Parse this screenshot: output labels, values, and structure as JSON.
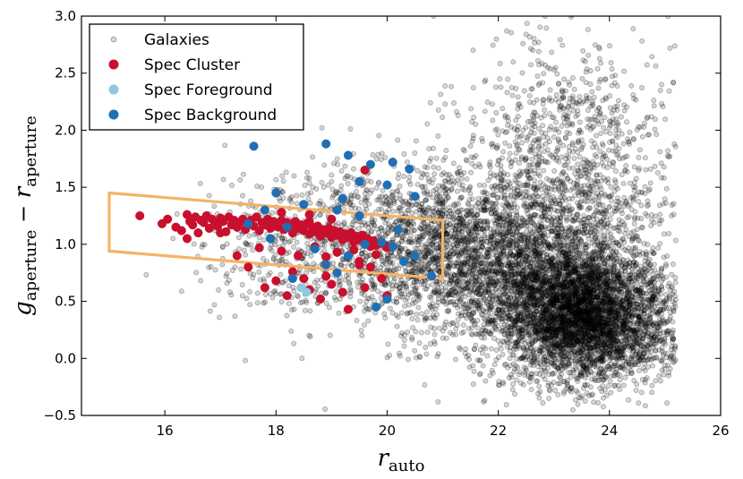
{
  "chart_data": {
    "type": "scatter",
    "title": "",
    "xlabel": {
      "base": "r",
      "sub": "auto"
    },
    "ylabel": {
      "g": "g",
      "g_sub": "aperture",
      "minus": " − ",
      "r": "r",
      "r_sub": "aperture"
    },
    "xlim": [
      14.5,
      26
    ],
    "ylim": [
      -0.5,
      3.0
    ],
    "xticks": [
      16,
      18,
      20,
      22,
      24,
      26
    ],
    "yticks": [
      -0.5,
      0.0,
      0.5,
      1.0,
      1.5,
      2.0,
      2.5,
      3.0
    ],
    "xtick_labels": [
      "16",
      "18",
      "20",
      "22",
      "24",
      "26"
    ],
    "ytick_labels": [
      "−0.5",
      "0.0",
      "0.5",
      "1.0",
      "1.5",
      "2.0",
      "2.5",
      "3.0"
    ],
    "grid": false,
    "legend_position": "top-left",
    "legend": [
      {
        "label": "Galaxies",
        "color": "#bfbfbf",
        "marker": "open-circle"
      },
      {
        "label": "Spec Cluster",
        "color": "#c8102e",
        "marker": "circle"
      },
      {
        "label": "Spec Foreground",
        "color": "#8ec9e0",
        "marker": "circle"
      },
      {
        "label": "Spec Background",
        "color": "#1f6fb5",
        "marker": "circle"
      }
    ],
    "selection_box": {
      "color": "#f5b266",
      "vertices": [
        [
          15.0,
          1.45
        ],
        [
          21.0,
          1.21
        ],
        [
          21.0,
          0.7
        ],
        [
          15.0,
          0.94
        ]
      ]
    },
    "series": [
      {
        "name": "Galaxies",
        "color": "#000000",
        "style": "translucent-open",
        "description": "approx. 9000 galaxies; dense cloud centred near r=23-24, g-r~0.3, spreading to r~15.5-25.2 and g-r -0.5 to 3.0",
        "approx_count": 9000,
        "clusters": [
          {
            "mean_x": 23.6,
            "mean_y": 0.35,
            "sd_x": 0.75,
            "sd_y": 0.28,
            "n": 3600
          },
          {
            "mean_x": 22.6,
            "mean_y": 0.75,
            "sd_x": 1.0,
            "sd_y": 0.38,
            "n": 2200
          },
          {
            "mean_x": 23.2,
            "mean_y": 1.6,
            "sd_x": 0.9,
            "sd_y": 0.6,
            "n": 1200
          },
          {
            "mean_x": 20.8,
            "mean_y": 1.0,
            "sd_x": 0.8,
            "sd_y": 0.35,
            "n": 1200
          },
          {
            "mean_x": 18.8,
            "mean_y": 1.0,
            "sd_x": 1.1,
            "sd_y": 0.35,
            "n": 700
          }
        ]
      },
      {
        "name": "Spec Cluster",
        "color": "#c8102e",
        "points": [
          [
            15.55,
            1.25
          ],
          [
            15.95,
            1.18
          ],
          [
            16.05,
            1.22
          ],
          [
            16.2,
            1.15
          ],
          [
            16.3,
            1.12
          ],
          [
            16.4,
            1.26
          ],
          [
            16.45,
            1.2
          ],
          [
            16.5,
            1.17
          ],
          [
            16.55,
            1.24
          ],
          [
            16.6,
            1.1
          ],
          [
            16.65,
            1.21
          ],
          [
            16.7,
            1.19
          ],
          [
            16.75,
            1.25
          ],
          [
            16.8,
            1.14
          ],
          [
            16.85,
            1.22
          ],
          [
            16.9,
            1.18
          ],
          [
            16.95,
            1.16
          ],
          [
            17.0,
            1.23
          ],
          [
            17.05,
            1.2
          ],
          [
            17.1,
            1.11
          ],
          [
            17.15,
            1.24
          ],
          [
            17.2,
            1.17
          ],
          [
            17.25,
            1.21
          ],
          [
            17.3,
            1.15
          ],
          [
            17.35,
            1.19
          ],
          [
            17.4,
            1.22
          ],
          [
            17.45,
            1.13
          ],
          [
            17.5,
            1.18
          ],
          [
            17.55,
            1.21
          ],
          [
            17.6,
            1.16
          ],
          [
            17.65,
            1.24
          ],
          [
            17.7,
            1.12
          ],
          [
            17.75,
            1.19
          ],
          [
            17.8,
            1.17
          ],
          [
            17.85,
            1.22
          ],
          [
            17.9,
            1.14
          ],
          [
            17.95,
            1.2
          ],
          [
            18.0,
            1.18
          ],
          [
            18.05,
            1.15
          ],
          [
            18.1,
            1.21
          ],
          [
            18.15,
            1.13
          ],
          [
            18.2,
            1.19
          ],
          [
            18.25,
            1.16
          ],
          [
            18.3,
            1.1
          ],
          [
            18.35,
            1.2
          ],
          [
            18.4,
            1.14
          ],
          [
            18.45,
            1.17
          ],
          [
            18.5,
            1.12
          ],
          [
            18.55,
            1.18
          ],
          [
            18.6,
            1.09
          ],
          [
            18.65,
            1.15
          ],
          [
            18.7,
            1.11
          ],
          [
            18.75,
            1.16
          ],
          [
            18.8,
            1.07
          ],
          [
            18.85,
            1.13
          ],
          [
            18.9,
            1.1
          ],
          [
            18.95,
            1.14
          ],
          [
            19.0,
            1.06
          ],
          [
            19.05,
            1.12
          ],
          [
            19.1,
            1.08
          ],
          [
            19.15,
            1.11
          ],
          [
            19.2,
            1.04
          ],
          [
            19.25,
            1.09
          ],
          [
            19.3,
            1.06
          ],
          [
            19.35,
            1.1
          ],
          [
            19.4,
            1.02
          ],
          [
            19.45,
            1.07
          ],
          [
            19.5,
            1.04
          ],
          [
            19.55,
            1.08
          ],
          [
            19.6,
            1.0
          ],
          [
            19.65,
            1.05
          ],
          [
            19.7,
            0.98
          ],
          [
            19.75,
            1.03
          ],
          [
            19.8,
            0.99
          ],
          [
            19.9,
            1.01
          ],
          [
            20.0,
            0.97
          ],
          [
            17.3,
            0.9
          ],
          [
            17.7,
            0.97
          ],
          [
            18.1,
            0.94
          ],
          [
            18.4,
            0.9
          ],
          [
            18.7,
            0.98
          ],
          [
            19.1,
            0.93
          ],
          [
            19.4,
            0.95
          ],
          [
            19.8,
            0.91
          ],
          [
            17.5,
            0.8
          ],
          [
            18.0,
            0.68
          ],
          [
            18.3,
            0.76
          ],
          [
            18.6,
            0.6
          ],
          [
            18.9,
            0.72
          ],
          [
            19.2,
            0.58
          ],
          [
            19.5,
            0.85
          ],
          [
            19.6,
            0.62
          ],
          [
            19.9,
            0.7
          ],
          [
            18.2,
            0.55
          ],
          [
            18.8,
            0.52
          ],
          [
            19.3,
            0.43
          ],
          [
            19.0,
            0.65
          ],
          [
            17.8,
            0.62
          ],
          [
            19.7,
            0.8
          ],
          [
            20.0,
            0.55
          ],
          [
            18.5,
            0.7
          ],
          [
            19.6,
            1.65
          ],
          [
            18.6,
            1.2
          ],
          [
            16.4,
            1.05
          ],
          [
            17.0,
            1.1
          ],
          [
            18.1,
            1.28
          ],
          [
            18.6,
            1.26
          ],
          [
            19.0,
            1.22
          ],
          [
            18.9,
            0.89
          ],
          [
            19.5,
            0.82
          ]
        ]
      },
      {
        "name": "Spec Foreground",
        "color": "#8ec9e0",
        "points": [
          [
            18.45,
            0.62
          ],
          [
            18.55,
            0.58
          ]
        ]
      },
      {
        "name": "Spec Background",
        "color": "#1f6fb5",
        "points": [
          [
            17.6,
            1.86
          ],
          [
            18.9,
            1.88
          ],
          [
            19.3,
            1.78
          ],
          [
            19.7,
            1.7
          ],
          [
            20.1,
            1.72
          ],
          [
            20.4,
            1.66
          ],
          [
            19.5,
            1.55
          ],
          [
            20.0,
            1.52
          ],
          [
            20.5,
            1.42
          ],
          [
            18.0,
            1.45
          ],
          [
            17.8,
            1.3
          ],
          [
            18.5,
            1.35
          ],
          [
            19.1,
            1.3
          ],
          [
            19.5,
            1.25
          ],
          [
            18.2,
            1.15
          ],
          [
            19.9,
            1.02
          ],
          [
            20.1,
            0.98
          ],
          [
            20.5,
            0.9
          ],
          [
            20.8,
            0.72
          ],
          [
            19.3,
            0.9
          ],
          [
            18.9,
            0.82
          ],
          [
            19.1,
            0.75
          ],
          [
            20.0,
            0.52
          ],
          [
            18.3,
            0.7
          ],
          [
            19.8,
            0.45
          ],
          [
            17.9,
            1.05
          ],
          [
            20.3,
            0.85
          ],
          [
            19.6,
            1.0
          ],
          [
            18.7,
            0.96
          ],
          [
            20.2,
            1.13
          ],
          [
            19.2,
            1.4
          ],
          [
            17.5,
            1.18
          ]
        ]
      }
    ]
  }
}
